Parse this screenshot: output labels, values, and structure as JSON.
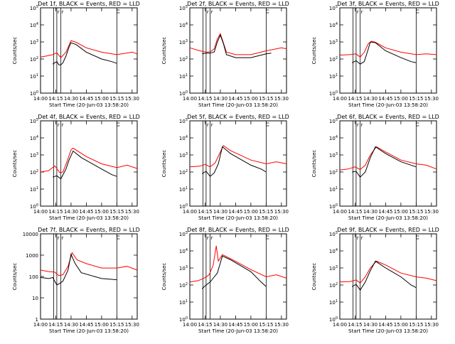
{
  "chart_data": [
    {
      "type": "line",
      "title": "Det 1f, BLACK = Events, RED = LLD",
      "xlabel": "Start Time (20-Jun-03 13:58:20)",
      "ylabel": "Counts/sec",
      "x_ticks": [
        "14:00",
        "14:15",
        "14:30",
        "14:45",
        "15:00",
        "15:15",
        "15:30"
      ],
      "y_ticks": [
        "10^0",
        "10^1",
        "10^2",
        "10^3",
        "10^4",
        "10^5"
      ],
      "ylim": [
        1,
        100000
      ],
      "y_scale": "log",
      "markers": [
        "14:13",
        "14:16",
        "14:20",
        "15:15"
      ],
      "marker_labels": [
        "r",
        "r"
      ],
      "series": [
        {
          "name": "Events",
          "color": "#000000",
          "x": [
            "14:12",
            "14:14",
            "14:16",
            "14:18",
            "14:20",
            "14:22",
            "14:25",
            "14:28",
            "14:30",
            "14:35",
            "14:45",
            "15:00",
            "15:10",
            "15:15"
          ],
          "y": [
            50,
            60,
            70,
            45,
            45,
            60,
            150,
            500,
            900,
            700,
            250,
            100,
            70,
            55
          ]
        },
        {
          "name": "LLD",
          "color": "#ff0000",
          "x": [
            "14:00",
            "14:06",
            "14:12",
            "14:16",
            "14:20",
            "14:25",
            "14:30",
            "14:35",
            "14:45",
            "15:00",
            "15:15",
            "15:20",
            "15:30",
            "15:35"
          ],
          "y": [
            130,
            150,
            180,
            230,
            120,
            250,
            1200,
            950,
            450,
            250,
            180,
            200,
            250,
            200
          ]
        }
      ]
    },
    {
      "type": "line",
      "title": "Det 2f, BLACK = Events, RED = LLD",
      "xlabel": "Start Time (20-Jun-03 13:58:20)",
      "ylabel": "Counts/sec",
      "x_ticks": [
        "14:00",
        "14:15",
        "14:30",
        "14:45",
        "15:00",
        "15:15",
        "15:30"
      ],
      "y_ticks": [
        "10^0",
        "10^1",
        "10^2",
        "10^3",
        "10^4",
        "10^5"
      ],
      "ylim": [
        1,
        100000
      ],
      "y_scale": "log",
      "markers": [
        "14:13",
        "14:16",
        "14:20",
        "15:15"
      ],
      "marker_labels": [
        "r",
        "r"
      ],
      "series": [
        {
          "name": "Events",
          "color": "#000000",
          "x": [
            "14:12",
            "14:16",
            "14:20",
            "14:24",
            "14:27",
            "14:30",
            "14:33",
            "14:36",
            "14:45",
            "15:00",
            "15:15",
            "15:20"
          ],
          "y": [
            200,
            220,
            220,
            260,
            1000,
            2500,
            800,
            180,
            120,
            120,
            200,
            220
          ]
        },
        {
          "name": "LLD",
          "color": "#ff0000",
          "x": [
            "14:00",
            "14:10",
            "14:16",
            "14:20",
            "14:24",
            "14:27",
            "14:30",
            "14:33",
            "14:36",
            "14:45",
            "15:00",
            "15:15",
            "15:30",
            "15:35"
          ],
          "y": [
            450,
            300,
            250,
            260,
            400,
            1500,
            3000,
            900,
            250,
            180,
            180,
            300,
            450,
            400
          ]
        }
      ]
    },
    {
      "type": "line",
      "title": "Det 3f, BLACK = Events, RED = LLD",
      "xlabel": "Start Time (20-Jun-03 13:58:20)",
      "ylabel": "Counts/sec",
      "x_ticks": [
        "14:00",
        "14:15",
        "14:30",
        "14:45",
        "15:00",
        "15:15",
        "15:30"
      ],
      "y_ticks": [
        "10^0",
        "10^1",
        "10^2",
        "10^3",
        "10^4",
        "10^5"
      ],
      "ylim": [
        1,
        100000
      ],
      "y_scale": "log",
      "markers": [
        "14:13",
        "14:16",
        "14:20",
        "15:15"
      ],
      "marker_labels": [
        "r",
        "r"
      ],
      "series": [
        {
          "name": "Events",
          "color": "#000000",
          "x": [
            "14:12",
            "14:16",
            "14:20",
            "14:24",
            "14:28",
            "14:30",
            "14:35",
            "14:45",
            "15:00",
            "15:10",
            "15:15"
          ],
          "y": [
            60,
            80,
            50,
            70,
            400,
            1000,
            900,
            300,
            120,
            70,
            60
          ]
        },
        {
          "name": "LLD",
          "color": "#ff0000",
          "x": [
            "14:00",
            "14:10",
            "14:16",
            "14:20",
            "14:24",
            "14:28",
            "14:31",
            "14:35",
            "14:45",
            "15:00",
            "15:15",
            "15:25",
            "15:35"
          ],
          "y": [
            170,
            180,
            200,
            130,
            250,
            800,
            1100,
            950,
            450,
            250,
            180,
            200,
            180
          ]
        }
      ]
    },
    {
      "type": "line",
      "title": "Det 4f, BLACK = Events, RED = LLD",
      "xlabel": "Start Time (20-Jun-03 13:58:20)",
      "ylabel": "Counts/sec",
      "x_ticks": [
        "14:00",
        "14:15",
        "14:30",
        "14:45",
        "15:00",
        "15:15",
        "15:30"
      ],
      "y_ticks": [
        "10^0",
        "10^1",
        "10^2",
        "10^3",
        "10^4",
        "10^5"
      ],
      "ylim": [
        1,
        100000
      ],
      "y_scale": "log",
      "markers": [
        "14:13",
        "14:16",
        "14:20",
        "15:15"
      ],
      "marker_labels": [
        "r",
        "r"
      ],
      "series": [
        {
          "name": "Events",
          "color": "#000000",
          "x": [
            "14:12",
            "14:16",
            "14:20",
            "14:25",
            "14:28",
            "14:32",
            "14:40",
            "15:00",
            "15:10",
            "15:15"
          ],
          "y": [
            50,
            60,
            40,
            150,
            500,
            1700,
            700,
            150,
            70,
            55
          ]
        },
        {
          "name": "LLD",
          "color": "#ff0000",
          "x": [
            "14:00",
            "14:08",
            "14:14",
            "14:19",
            "14:22",
            "14:26",
            "14:30",
            "14:32",
            "14:45",
            "15:00",
            "15:15",
            "15:25",
            "15:35"
          ],
          "y": [
            100,
            120,
            230,
            90,
            100,
            400,
            2000,
            2500,
            800,
            300,
            180,
            250,
            160
          ]
        }
      ]
    },
    {
      "type": "line",
      "title": "Det 5f, BLACK = Events, RED = LLD",
      "xlabel": "Start Time (20-Jun-03 13:58:20)",
      "ylabel": "Counts/sec",
      "x_ticks": [
        "14:00",
        "14:15",
        "14:30",
        "14:45",
        "15:00",
        "15:15",
        "15:30"
      ],
      "y_ticks": [
        "10^0",
        "10^1",
        "10^2",
        "10^3",
        "10^4",
        "10^5"
      ],
      "ylim": [
        1,
        100000
      ],
      "y_scale": "log",
      "markers": [
        "14:13",
        "14:16",
        "14:20",
        "15:15"
      ],
      "marker_labels": [
        "r",
        "r"
      ],
      "series": [
        {
          "name": "Events",
          "color": "#000000",
          "x": [
            "14:12",
            "14:16",
            "14:20",
            "14:24",
            "14:28",
            "14:32",
            "14:40",
            "15:00",
            "15:10",
            "15:15"
          ],
          "y": [
            80,
            110,
            55,
            90,
            300,
            3000,
            1200,
            250,
            150,
            100
          ]
        },
        {
          "name": "LLD",
          "color": "#ff0000",
          "x": [
            "14:00",
            "14:10",
            "14:15",
            "14:20",
            "14:25",
            "14:30",
            "14:33",
            "14:40",
            "15:00",
            "15:15",
            "15:25",
            "15:35"
          ],
          "y": [
            200,
            220,
            280,
            200,
            350,
            1500,
            3500,
            1800,
            500,
            300,
            400,
            300
          ]
        }
      ]
    },
    {
      "type": "line",
      "title": "Det 6f, BLACK = Events, RED = LLD",
      "xlabel": "Start Time (20-Jun-03 13:58:20)",
      "ylabel": "Counts/sec",
      "x_ticks": [
        "14:00",
        "14:15",
        "14:30",
        "14:45",
        "15:00",
        "15:15",
        "15:30"
      ],
      "y_ticks": [
        "10^0",
        "10^1",
        "10^2",
        "10^3",
        "10^4",
        "10^5"
      ],
      "ylim": [
        1,
        100000
      ],
      "y_scale": "log",
      "markers": [
        "14:13",
        "14:16",
        "14:20",
        "15:15"
      ],
      "marker_labels": [
        "r",
        "r"
      ],
      "series": [
        {
          "name": "Events",
          "color": "#000000",
          "x": [
            "14:12",
            "14:16",
            "14:20",
            "14:25",
            "14:30",
            "14:35",
            "14:45",
            "15:00",
            "15:15"
          ],
          "y": [
            100,
            110,
            50,
            100,
            700,
            3000,
            1200,
            400,
            200
          ]
        },
        {
          "name": "LLD",
          "color": "#ff0000",
          "x": [
            "14:00",
            "14:08",
            "14:15",
            "14:20",
            "14:25",
            "14:30",
            "14:36",
            "14:45",
            "15:00",
            "15:15",
            "15:25",
            "15:35"
          ],
          "y": [
            130,
            150,
            200,
            140,
            250,
            1000,
            3000,
            1500,
            500,
            300,
            250,
            150
          ]
        }
      ]
    },
    {
      "type": "line",
      "title": "Det 7f, BLACK = Events, RED = LLD",
      "xlabel": "Start Time (20-Jun-03 13:58:20)",
      "ylabel": "Counts/sec",
      "x_ticks": [
        "14:00",
        "14:15",
        "14:30",
        "14:45",
        "15:00",
        "15:15",
        "15:30"
      ],
      "y_ticks": [
        "1",
        "10",
        "100",
        "1000",
        "10000"
      ],
      "ylim": [
        1,
        10000
      ],
      "y_scale": "log",
      "markers": [
        "14:13",
        "14:16",
        "14:20",
        "15:15"
      ],
      "marker_labels": [
        "r",
        "r"
      ],
      "series": [
        {
          "name": "Events",
          "color": "#000000",
          "x": [
            "14:00",
            "14:08",
            "14:12",
            "14:16",
            "14:18",
            "14:22",
            "14:27",
            "14:30",
            "14:34",
            "14:40",
            "15:00",
            "15:15"
          ],
          "y": [
            90,
            80,
            90,
            40,
            45,
            60,
            200,
            1100,
            400,
            150,
            80,
            70
          ]
        },
        {
          "name": "LLD",
          "color": "#ff0000",
          "x": [
            "14:00",
            "14:08",
            "14:14",
            "14:18",
            "14:22",
            "14:27",
            "14:31",
            "14:36",
            "14:45",
            "15:00",
            "15:15",
            "15:25",
            "15:35"
          ],
          "y": [
            200,
            170,
            160,
            110,
            120,
            300,
            1300,
            600,
            400,
            250,
            250,
            300,
            200
          ]
        }
      ]
    },
    {
      "type": "line",
      "title": "Det 8f, BLACK = Events, RED = LLD",
      "xlabel": "Start Time (20-Jun-03 13:58:20)",
      "ylabel": "Counts/sec",
      "x_ticks": [
        "14:00",
        "14:15",
        "14:30",
        "14:45",
        "15:00",
        "15:15",
        "15:30"
      ],
      "y_ticks": [
        "10^0",
        "10^1",
        "10^2",
        "10^3",
        "10^4",
        "10^5"
      ],
      "ylim": [
        1,
        100000
      ],
      "y_scale": "log",
      "markers": [
        "14:13",
        "14:16",
        "14:20",
        "15:15"
      ],
      "marker_labels": [
        "r",
        "r"
      ],
      "series": [
        {
          "name": "Events",
          "color": "#000000",
          "x": [
            "14:12",
            "14:16",
            "14:20",
            "14:24",
            "14:27",
            "14:32",
            "14:40",
            "15:00",
            "15:10",
            "15:15"
          ],
          "y": [
            60,
            100,
            150,
            300,
            500,
            5000,
            3000,
            600,
            150,
            80
          ]
        },
        {
          "name": "LLD",
          "color": "#ff0000",
          "x": [
            "14:00",
            "14:08",
            "14:14",
            "14:19",
            "14:23",
            "14:26",
            "14:28",
            "14:32",
            "14:40",
            "15:00",
            "15:15",
            "15:25",
            "15:35"
          ],
          "y": [
            150,
            180,
            250,
            400,
            1500,
            20000,
            2500,
            6000,
            3500,
            800,
            300,
            400,
            250
          ]
        }
      ]
    },
    {
      "type": "line",
      "title": "Det 9f, BLACK = Events, RED = LLD",
      "xlabel": "Start Time (20-Jun-03 13:58:20)",
      "ylabel": "Counts/sec",
      "x_ticks": [
        "14:00",
        "14:15",
        "14:30",
        "14:45",
        "15:00",
        "15:15",
        "15:30"
      ],
      "y_ticks": [
        "10^0",
        "10^1",
        "10^2",
        "10^3",
        "10^4",
        "10^5"
      ],
      "ylim": [
        1,
        100000
      ],
      "y_scale": "log",
      "markers": [
        "14:13",
        "14:16",
        "14:20",
        "15:15"
      ],
      "marker_labels": [
        "r",
        "r"
      ],
      "series": [
        {
          "name": "Events",
          "color": "#000000",
          "x": [
            "14:12",
            "14:16",
            "14:20",
            "14:25",
            "14:30",
            "14:35",
            "14:45",
            "15:00",
            "15:10",
            "15:15"
          ],
          "y": [
            80,
            110,
            50,
            150,
            700,
            2500,
            1000,
            300,
            100,
            70
          ]
        },
        {
          "name": "LLD",
          "color": "#ff0000",
          "x": [
            "14:00",
            "14:10",
            "14:16",
            "14:20",
            "14:25",
            "14:30",
            "14:36",
            "14:45",
            "15:00",
            "15:15",
            "15:25",
            "15:35"
          ],
          "y": [
            150,
            160,
            200,
            130,
            300,
            1000,
            2500,
            1500,
            500,
            300,
            250,
            180
          ]
        }
      ]
    }
  ]
}
